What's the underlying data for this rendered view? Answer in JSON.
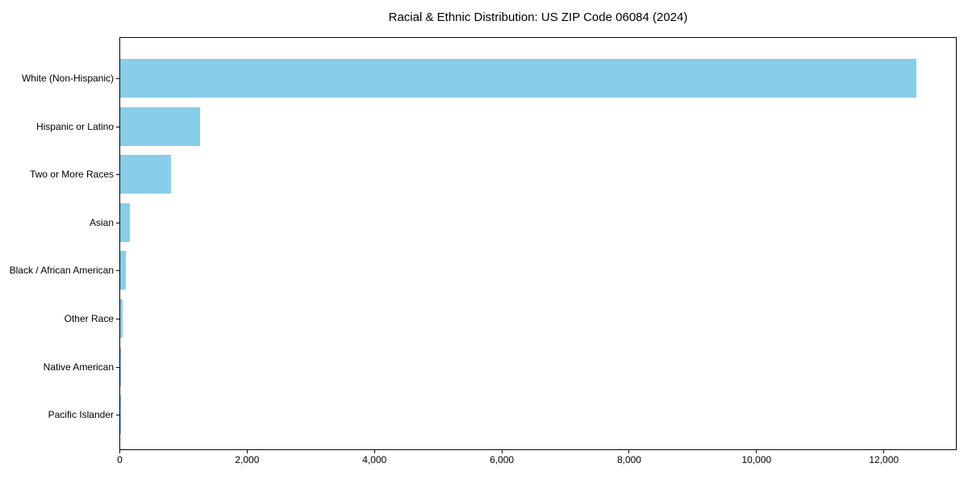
{
  "figure": {
    "background": "#ffffff"
  },
  "chart_data": {
    "type": "bar",
    "orientation": "horizontal",
    "title": "Racial & Ethnic Distribution: US ZIP Code 06084 (2024)",
    "categories": [
      "White (Non-Hispanic)",
      "Hispanic or Latino",
      "Two or More Races",
      "Asian",
      "Black / African American",
      "Other Race",
      "Native American",
      "Pacific Islander"
    ],
    "values": [
      12500,
      1250,
      800,
      150,
      90,
      35,
      10,
      3
    ],
    "xlabel": "",
    "ylabel": "",
    "xlim": [
      0,
      13125
    ],
    "x_ticks": [
      0,
      2000,
      4000,
      6000,
      8000,
      10000,
      12000
    ],
    "x_tick_labels": [
      "0",
      "2,000",
      "4,000",
      "6,000",
      "8,000",
      "10,000",
      "12,000"
    ],
    "bar_color": "#87CEEB",
    "axis_color": "#000000",
    "text_color": "#000000",
    "grid": false,
    "legend": null
  }
}
